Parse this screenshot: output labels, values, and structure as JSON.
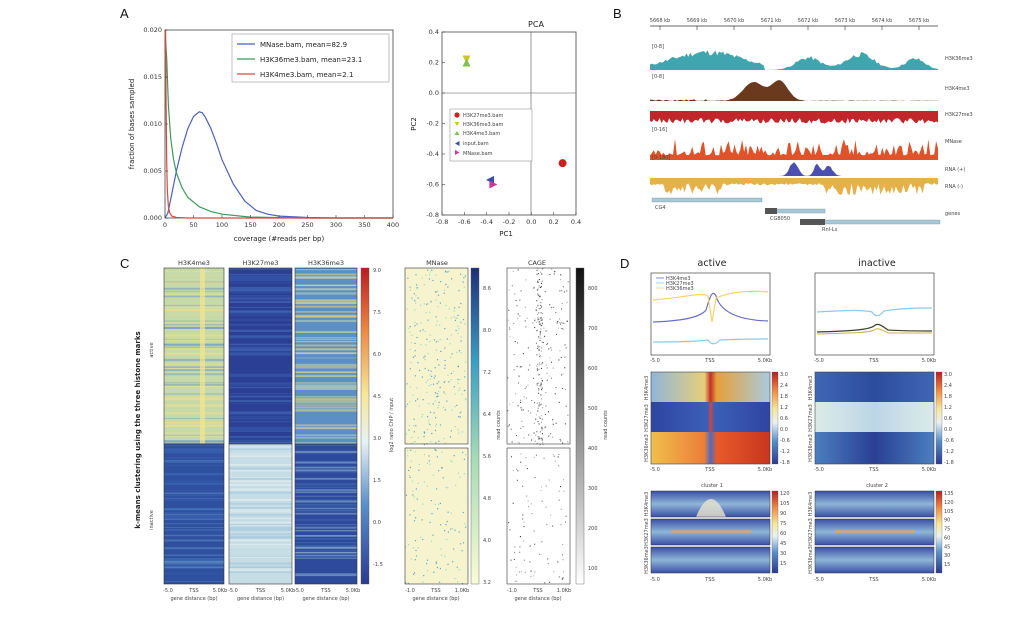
{
  "figure": {
    "panels": [
      "A",
      "B",
      "C",
      "D"
    ]
  },
  "chart_data": [
    {
      "type": "line",
      "panel": "A",
      "title": "",
      "xlabel": "coverage (#reads per bp)",
      "ylabel": "fraction of bases sampled",
      "xlim": [
        0,
        400
      ],
      "ylim": [
        0,
        0.02
      ],
      "xticks": [
        "0",
        "50",
        "100",
        "150",
        "200",
        "250",
        "300",
        "350",
        "400"
      ],
      "yticks": [
        "0.000",
        "0.005",
        "0.010",
        "0.015",
        "0.020"
      ],
      "series": [
        {
          "name": "MNase.bam, mean=82.9",
          "color": "#4a5fc1",
          "x": [
            0,
            5,
            10,
            20,
            30,
            40,
            50,
            60,
            65,
            70,
            80,
            90,
            100,
            120,
            140,
            160,
            180,
            200,
            250,
            300,
            400
          ],
          "y": [
            0.0,
            0.0005,
            0.002,
            0.005,
            0.0075,
            0.0095,
            0.0108,
            0.0113,
            0.0112,
            0.0108,
            0.0096,
            0.008,
            0.0062,
            0.0036,
            0.0018,
            0.0008,
            0.0004,
            0.0002,
            5e-05,
            0.0,
            0.0
          ]
        },
        {
          "name": "H3K36me3.bam, mean=23.1",
          "color": "#3a9b5a",
          "x": [
            0,
            3,
            6,
            10,
            15,
            20,
            30,
            40,
            60,
            80,
            100,
            150,
            200,
            250,
            300,
            400
          ],
          "y": [
            0.02,
            0.017,
            0.012,
            0.0085,
            0.0062,
            0.0048,
            0.0032,
            0.0022,
            0.0012,
            0.0007,
            0.0004,
            0.0001,
            4e-05,
            0.0,
            0.0,
            0.0
          ]
        },
        {
          "name": "H3K4me3.bam, mean=2.1",
          "color": "#d94a3a",
          "x": [
            0,
            1,
            2,
            3,
            4,
            6,
            8,
            12,
            20,
            40,
            100,
            400
          ],
          "y": [
            0.02,
            0.02,
            0.012,
            0.006,
            0.003,
            0.0012,
            0.0006,
            0.0002,
            5e-05,
            0.0,
            0.0,
            0.0
          ]
        }
      ]
    },
    {
      "type": "scatter",
      "panel": "A",
      "title": "PCA",
      "xlabel": "PC1",
      "ylabel": "PC2",
      "xlim": [
        -0.8,
        0.4
      ],
      "ylim": [
        -0.8,
        0.4
      ],
      "xticks": [
        "-0.8",
        "-0.6",
        "-0.4",
        "-0.2",
        "0.0",
        "0.2",
        "0.4"
      ],
      "yticks": [
        "0.4",
        "0.2",
        "0.0",
        "-0.2",
        "-0.4",
        "-0.6",
        "-0.8"
      ],
      "series": [
        {
          "name": "H3K27me3.bam",
          "marker": "circle",
          "color": "#cc1f1f",
          "x": [
            0.28
          ],
          "y": [
            -0.46
          ]
        },
        {
          "name": "H3K36me3.bam",
          "marker": "triangle-down",
          "color": "#c8c820",
          "x": [
            -0.58
          ],
          "y": [
            0.22
          ]
        },
        {
          "name": "H3K4me3.bam",
          "marker": "triangle-up",
          "color": "#7fc24a",
          "x": [
            -0.58
          ],
          "y": [
            0.2
          ]
        },
        {
          "name": "input.bam",
          "marker": "triangle-left",
          "color": "#3a4fa8",
          "x": [
            -0.37
          ],
          "y": [
            -0.57
          ]
        },
        {
          "name": "MNase.bam",
          "marker": "triangle-right",
          "color": "#c63a9a",
          "x": [
            -0.34
          ],
          "y": [
            -0.6
          ]
        }
      ]
    }
  ],
  "panelB": {
    "coords": [
      "5668 kb",
      "5669 kb",
      "5670 kb",
      "5671 kb",
      "5672 kb",
      "5673 kb",
      "5674 kb",
      "5675 kb"
    ],
    "tracks": [
      {
        "name": "H3K36me3",
        "range": "[0-8]",
        "color": "#3fa6b0"
      },
      {
        "name": "H3K4me3",
        "range": "[0-8]",
        "color": "#6b3a1e"
      },
      {
        "name": "H3K27me3",
        "range": "",
        "color": "#c0262a"
      },
      {
        "name": "MNase",
        "range": "[0-16]",
        "color": "#e0532a"
      },
      {
        "name": "RNA (+)",
        "range": "[0-180]",
        "color": "#4b4fb0"
      },
      {
        "name": "RNA (-)",
        "range": "",
        "color": "#e6b04a"
      },
      {
        "name": "genes",
        "range": "",
        "color": "#7aa5bf"
      }
    ],
    "gene_labels": [
      "CG4",
      "CG8050",
      "Rnl-Ls"
    ]
  },
  "panelC": {
    "row_title": "k-means clustering using the three histone marks",
    "clusters": [
      "active",
      "inactive"
    ],
    "heatmaps": [
      "H3K4me3",
      "H3K27me3",
      "H3K36me3"
    ],
    "cbar_label": "log2 ratio ChIP / input",
    "cbar_ticks": [
      "9.0",
      "7.5",
      "6.0",
      "4.5",
      "3.0",
      "1.5",
      "0.0",
      "-1.5"
    ],
    "xticks": [
      "-5.0",
      "TSS",
      "5.0Kb"
    ],
    "xlabel": "gene distance (bp)",
    "mnase": {
      "title": "MNase",
      "cbar_label": "read counts",
      "cbar_ticks": [
        "8.6",
        "8.0",
        "7.2",
        "6.4",
        "5.6",
        "4.8",
        "4.0",
        "3.2"
      ],
      "xticks": [
        "-1.0",
        "TSS",
        "1.0Kb"
      ],
      "xlabel": "gene distance (bp)"
    },
    "cage": {
      "title": "CAGE",
      "cbar_label": "read counts",
      "cbar_ticks": [
        "800",
        "700",
        "600",
        "500",
        "400",
        "300",
        "200",
        "100"
      ],
      "xticks": [
        "-1.0",
        "TSS",
        "1.0Kb"
      ],
      "xlabel": "gene distance (bp)"
    }
  },
  "panelD": {
    "titles": [
      "active",
      "inactive"
    ],
    "legend": [
      "H3K4me3",
      "H3K27me3",
      "H3K36me3"
    ],
    "xticks": [
      "-5.0",
      "TSS",
      "5.0Kb"
    ],
    "cbar_ticks": [
      "3.0",
      "2.4",
      "1.8",
      "1.2",
      "0.6",
      "0.0",
      "-0.6",
      "-1.2",
      "-1.8"
    ],
    "row_labels": [
      "H3K4me3",
      "H3K27me3",
      "H3K36me3"
    ],
    "clusters": [
      "cluster 1",
      "cluster 2"
    ],
    "c1_ticks": [
      "120",
      "105",
      "90",
      "75",
      "60",
      "45",
      "30",
      "15"
    ],
    "c2_ticks": [
      "135",
      "120",
      "105",
      "90",
      "75",
      "60",
      "45",
      "30",
      "15"
    ]
  }
}
